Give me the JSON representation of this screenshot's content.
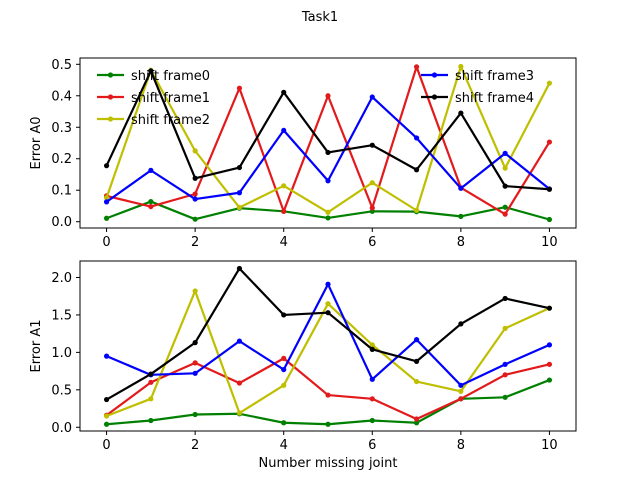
{
  "chart_data": {
    "type": "line",
    "title": "Task1",
    "xlabel": "Number missing joint",
    "x": [
      0,
      1,
      2,
      3,
      4,
      5,
      6,
      7,
      8,
      9,
      10
    ],
    "xticks": [
      0,
      2,
      4,
      6,
      8,
      10
    ],
    "xlim": [
      -0.6,
      10.6
    ],
    "subplots": [
      {
        "ylabel": "Error A0",
        "ylim": [
          -0.02,
          0.52
        ],
        "yticks": [
          "0.0",
          "0.1",
          "0.2",
          "0.3",
          "0.4",
          "0.5"
        ],
        "legend": "top, two columns",
        "series": [
          {
            "name": "shift frame0",
            "color": "#008000",
            "values": [
              0.011,
              0.064,
              0.008,
              0.043,
              0.033,
              0.012,
              0.033,
              0.032,
              0.017,
              0.046,
              0.007
            ]
          },
          {
            "name": "shift frame1",
            "color": "#e31a1c",
            "values": [
              0.082,
              0.048,
              0.088,
              0.424,
              0.033,
              0.4,
              0.044,
              0.492,
              0.108,
              0.024,
              0.253
            ]
          },
          {
            "name": "shift frame2",
            "color": "#bfbf00",
            "values": [
              0.076,
              0.481,
              0.225,
              0.045,
              0.114,
              0.03,
              0.124,
              0.036,
              0.493,
              0.17,
              0.44
            ]
          },
          {
            "name": "shift frame3",
            "color": "#0000ff",
            "values": [
              0.063,
              0.163,
              0.072,
              0.092,
              0.29,
              0.13,
              0.396,
              0.266,
              0.106,
              0.217,
              0.104
            ]
          },
          {
            "name": "shift frame4",
            "color": "#000000",
            "values": [
              0.178,
              0.479,
              0.138,
              0.172,
              0.411,
              0.22,
              0.243,
              0.165,
              0.345,
              0.113,
              0.103
            ]
          }
        ]
      },
      {
        "ylabel": "Error A1",
        "ylim": [
          -0.05,
          2.22
        ],
        "yticks": [
          "0.0",
          "0.5",
          "1.0",
          "1.5",
          "2.0"
        ],
        "series": [
          {
            "name": "shift frame0",
            "color": "#008000",
            "values": [
              0.04,
              0.09,
              0.17,
              0.18,
              0.06,
              0.04,
              0.09,
              0.06,
              0.38,
              0.4,
              0.63
            ]
          },
          {
            "name": "shift frame1",
            "color": "#e31a1c",
            "values": [
              0.16,
              0.6,
              0.86,
              0.59,
              0.92,
              0.43,
              0.38,
              0.11,
              0.38,
              0.7,
              0.84
            ]
          },
          {
            "name": "shift frame2",
            "color": "#bfbf00",
            "values": [
              0.15,
              0.38,
              1.82,
              0.19,
              0.56,
              1.65,
              1.1,
              0.61,
              0.48,
              1.32,
              1.59
            ]
          },
          {
            "name": "shift frame3",
            "color": "#0000ff",
            "values": [
              0.95,
              0.7,
              0.72,
              1.15,
              0.77,
              1.91,
              0.64,
              1.17,
              0.56,
              0.84,
              1.1
            ]
          },
          {
            "name": "shift frame4",
            "color": "#000000",
            "values": [
              0.37,
              0.71,
              1.13,
              2.12,
              1.5,
              1.53,
              1.04,
              0.88,
              1.38,
              1.72,
              1.59
            ]
          }
        ]
      }
    ]
  }
}
